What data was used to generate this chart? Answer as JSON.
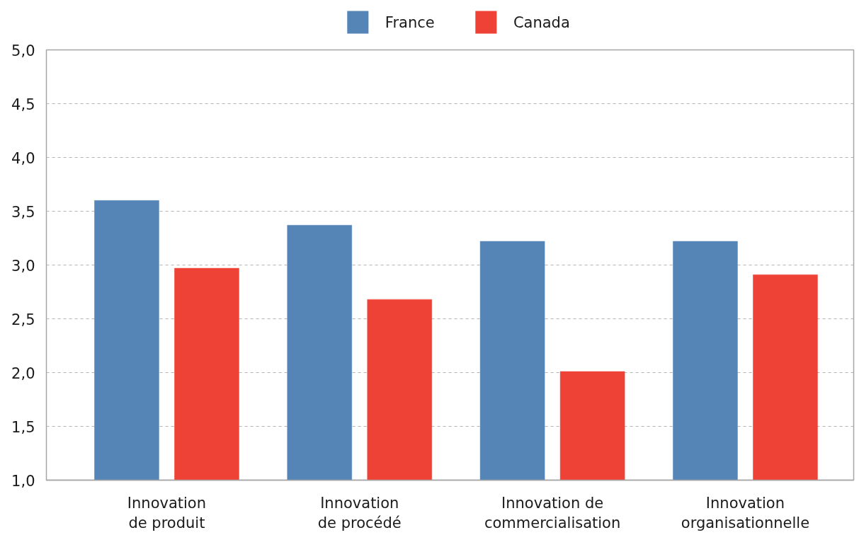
{
  "chart_data": {
    "type": "bar",
    "categories": [
      "Innovation\nde produit",
      "Innovation\nde procédé",
      "Innovation de\ncommercialisation",
      "Innovation\norganisationnelle"
    ],
    "series": [
      {
        "name": "France",
        "color": "#5585b7",
        "values": [
          3.6,
          3.37,
          3.22,
          3.22
        ]
      },
      {
        "name": "Canada",
        "color": "#ef4237",
        "values": [
          2.97,
          2.68,
          2.01,
          2.91
        ]
      }
    ],
    "ylim": [
      1,
      5
    ],
    "yticks": [
      {
        "value": 1,
        "label": "1,0"
      },
      {
        "value": 1.5,
        "label": "1,5"
      },
      {
        "value": 2,
        "label": "2,0"
      },
      {
        "value": 2.5,
        "label": "2,5"
      },
      {
        "value": 3,
        "label": "3,0"
      },
      {
        "value": 3.5,
        "label": "3,5"
      },
      {
        "value": 4,
        "label": "4,0"
      },
      {
        "value": 4.5,
        "label": "4,5"
      },
      {
        "value": 5,
        "label": "5,0"
      }
    ],
    "grid": "y",
    "legend": "top"
  }
}
